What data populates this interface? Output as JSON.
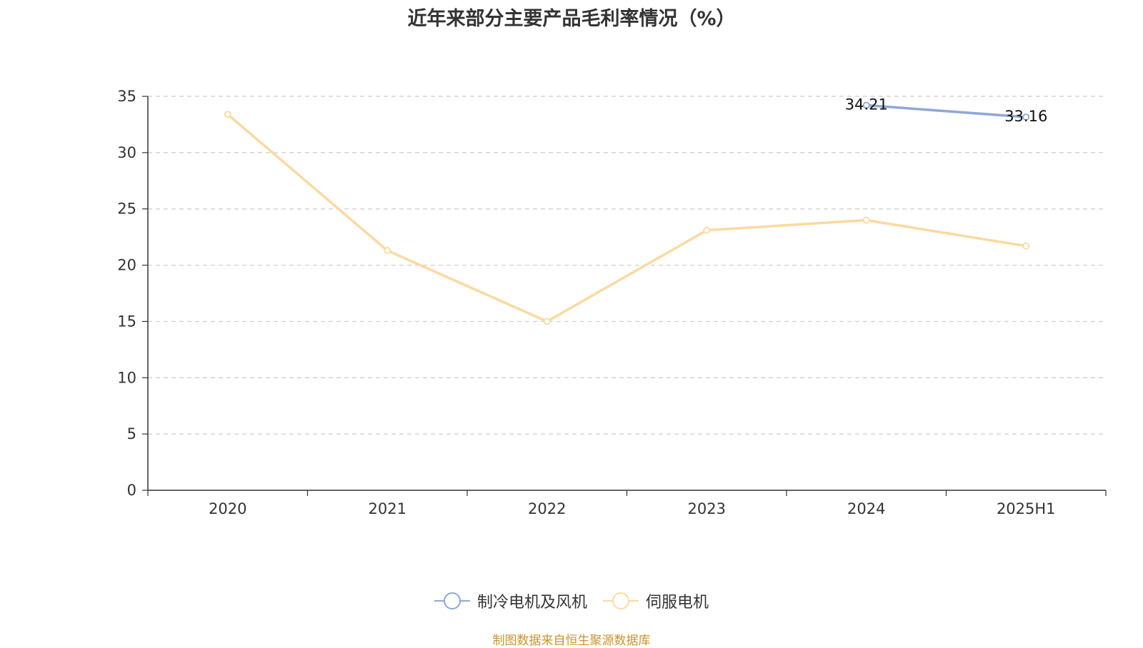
{
  "chart_data": {
    "type": "line",
    "title": "近年来部分主要产品毛利率情况（%）",
    "categories": [
      "2020",
      "2021",
      "2022",
      "2023",
      "2024",
      "2025H1"
    ],
    "ylim": [
      0,
      35
    ],
    "yticks": [
      0,
      5,
      10,
      15,
      20,
      25,
      30,
      35
    ],
    "grid": true,
    "legend_position": "bottom-center",
    "series": [
      {
        "name": "制冷电机及风机",
        "color": "#8fa8d6",
        "values": [
          null,
          null,
          null,
          null,
          34.21,
          33.16
        ],
        "data_labels": [
          null,
          null,
          null,
          null,
          "34.21",
          "33.16"
        ]
      },
      {
        "name": "伺服电机",
        "color": "#fbd9a0",
        "values": [
          33.4,
          21.3,
          15.0,
          23.1,
          24.0,
          21.7
        ],
        "data_labels": [
          null,
          null,
          null,
          null,
          null,
          null
        ]
      }
    ]
  },
  "source_note": "制图数据来自恒生聚源数据库",
  "source_note_color": "#c8962e"
}
